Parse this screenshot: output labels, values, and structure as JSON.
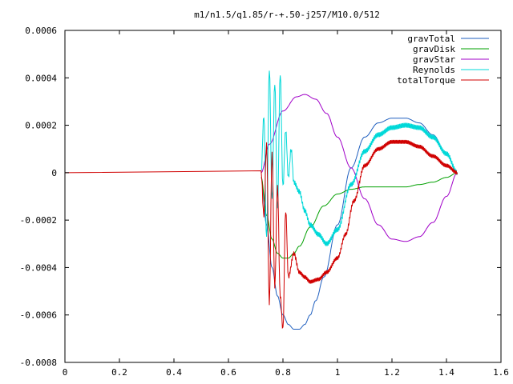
{
  "chart_data": {
    "type": "line",
    "title": "m1/n1.5/q1.85/r-+.50-j257/M10.0/512",
    "xlabel": "",
    "ylabel": "",
    "xlim": [
      0,
      1.6
    ],
    "ylim": [
      -0.0008,
      0.0006
    ],
    "grid": false,
    "legend_position": "top-right",
    "x_ticks": [
      "0",
      "0.2",
      "0.4",
      "0.6",
      "0.8",
      "1",
      "1.2",
      "1.4",
      "1.6"
    ],
    "y_ticks": [
      "0.0006",
      "0.0004",
      "0.0002",
      "0",
      "-0.0002",
      "-0.0004",
      "-0.0006",
      "-0.0008"
    ],
    "series": [
      {
        "name": "gravTotal",
        "color": "#1f5fbf",
        "noise": 0,
        "x": [
          0.72,
          0.74,
          0.76,
          0.78,
          0.8,
          0.82,
          0.84,
          0.86,
          0.88,
          0.9,
          0.92,
          0.95,
          1.0,
          1.05,
          1.1,
          1.15,
          1.2,
          1.25,
          1.3,
          1.35,
          1.4,
          1.44
        ],
        "y": [
          -2e-05,
          -0.00022,
          -0.0004,
          -0.00052,
          -0.0006,
          -0.00064,
          -0.00066,
          -0.00066,
          -0.00064,
          -0.0006,
          -0.00054,
          -0.00044,
          -0.00022,
          2e-05,
          0.00015,
          0.00021,
          0.00023,
          0.00023,
          0.00021,
          0.00016,
          8e-05,
          0
        ]
      },
      {
        "name": "gravDisk",
        "color": "#00a000",
        "noise": 0,
        "x": [
          0.72,
          0.74,
          0.76,
          0.78,
          0.8,
          0.82,
          0.84,
          0.86,
          0.9,
          0.95,
          1.0,
          1.05,
          1.1,
          1.15,
          1.2,
          1.25,
          1.3,
          1.35,
          1.4,
          1.44
        ],
        "y": [
          -2e-05,
          -0.00018,
          -0.00028,
          -0.00034,
          -0.00036,
          -0.00036,
          -0.00034,
          -0.00031,
          -0.00023,
          -0.00014,
          -9e-05,
          -7e-05,
          -6e-05,
          -6e-05,
          -6e-05,
          -6e-05,
          -5e-05,
          -4e-05,
          -2e-05,
          0
        ]
      },
      {
        "name": "gravStar",
        "color": "#a000c8",
        "noise": 0,
        "x": [
          0.72,
          0.75,
          0.8,
          0.85,
          0.88,
          0.92,
          0.96,
          1.0,
          1.05,
          1.1,
          1.15,
          1.2,
          1.25,
          1.3,
          1.35,
          1.4,
          1.44
        ],
        "y": [
          0.0,
          0.00012,
          0.00026,
          0.00032,
          0.00033,
          0.00031,
          0.00025,
          0.00015,
          2e-05,
          -0.00011,
          -0.00022,
          -0.00028,
          -0.00029,
          -0.00027,
          -0.00021,
          -0.0001,
          0
        ]
      },
      {
        "name": "Reynolds",
        "color": "#00d8d8",
        "noise": 1e-05,
        "x": [
          0.72,
          0.73,
          0.74,
          0.75,
          0.76,
          0.77,
          0.78,
          0.79,
          0.8,
          0.81,
          0.82,
          0.83,
          0.84,
          0.86,
          0.88,
          0.9,
          0.93,
          0.96,
          1.0,
          1.05,
          1.1,
          1.15,
          1.2,
          1.25,
          1.3,
          1.35,
          1.4,
          1.44
        ],
        "y": [
          0.0,
          0.00024,
          -0.00028,
          0.00044,
          -0.00012,
          0.00038,
          -0.00016,
          0.00042,
          -6e-05,
          0.00018,
          -2e-05,
          0.0001,
          -4e-05,
          -8e-05,
          -0.00016,
          -0.00022,
          -0.00026,
          -0.0003,
          -0.00024,
          -5e-05,
          9e-05,
          0.00016,
          0.00019,
          0.0002,
          0.00019,
          0.00015,
          8e-05,
          0
        ]
      },
      {
        "name": "totalTorque",
        "color": "#d00000",
        "noise": 8e-06,
        "x": [
          0.72,
          0.73,
          0.74,
          0.75,
          0.76,
          0.77,
          0.78,
          0.79,
          0.8,
          0.81,
          0.82,
          0.84,
          0.86,
          0.88,
          0.9,
          0.93,
          0.96,
          1.0,
          1.03,
          1.06,
          1.1,
          1.15,
          1.2,
          1.25,
          1.3,
          1.35,
          1.4,
          1.44
        ],
        "y": [
          0.0,
          -0.00018,
          0.00012,
          -0.00055,
          8e-05,
          -0.00048,
          -6e-05,
          -0.00052,
          -0.00066,
          -0.00016,
          -0.00044,
          -0.00034,
          -0.00042,
          -0.00044,
          -0.00046,
          -0.00045,
          -0.00042,
          -0.00036,
          -0.00026,
          -0.00012,
          3e-05,
          0.0001,
          0.00013,
          0.00013,
          0.00011,
          7e-05,
          3e-05,
          0
        ]
      }
    ]
  }
}
